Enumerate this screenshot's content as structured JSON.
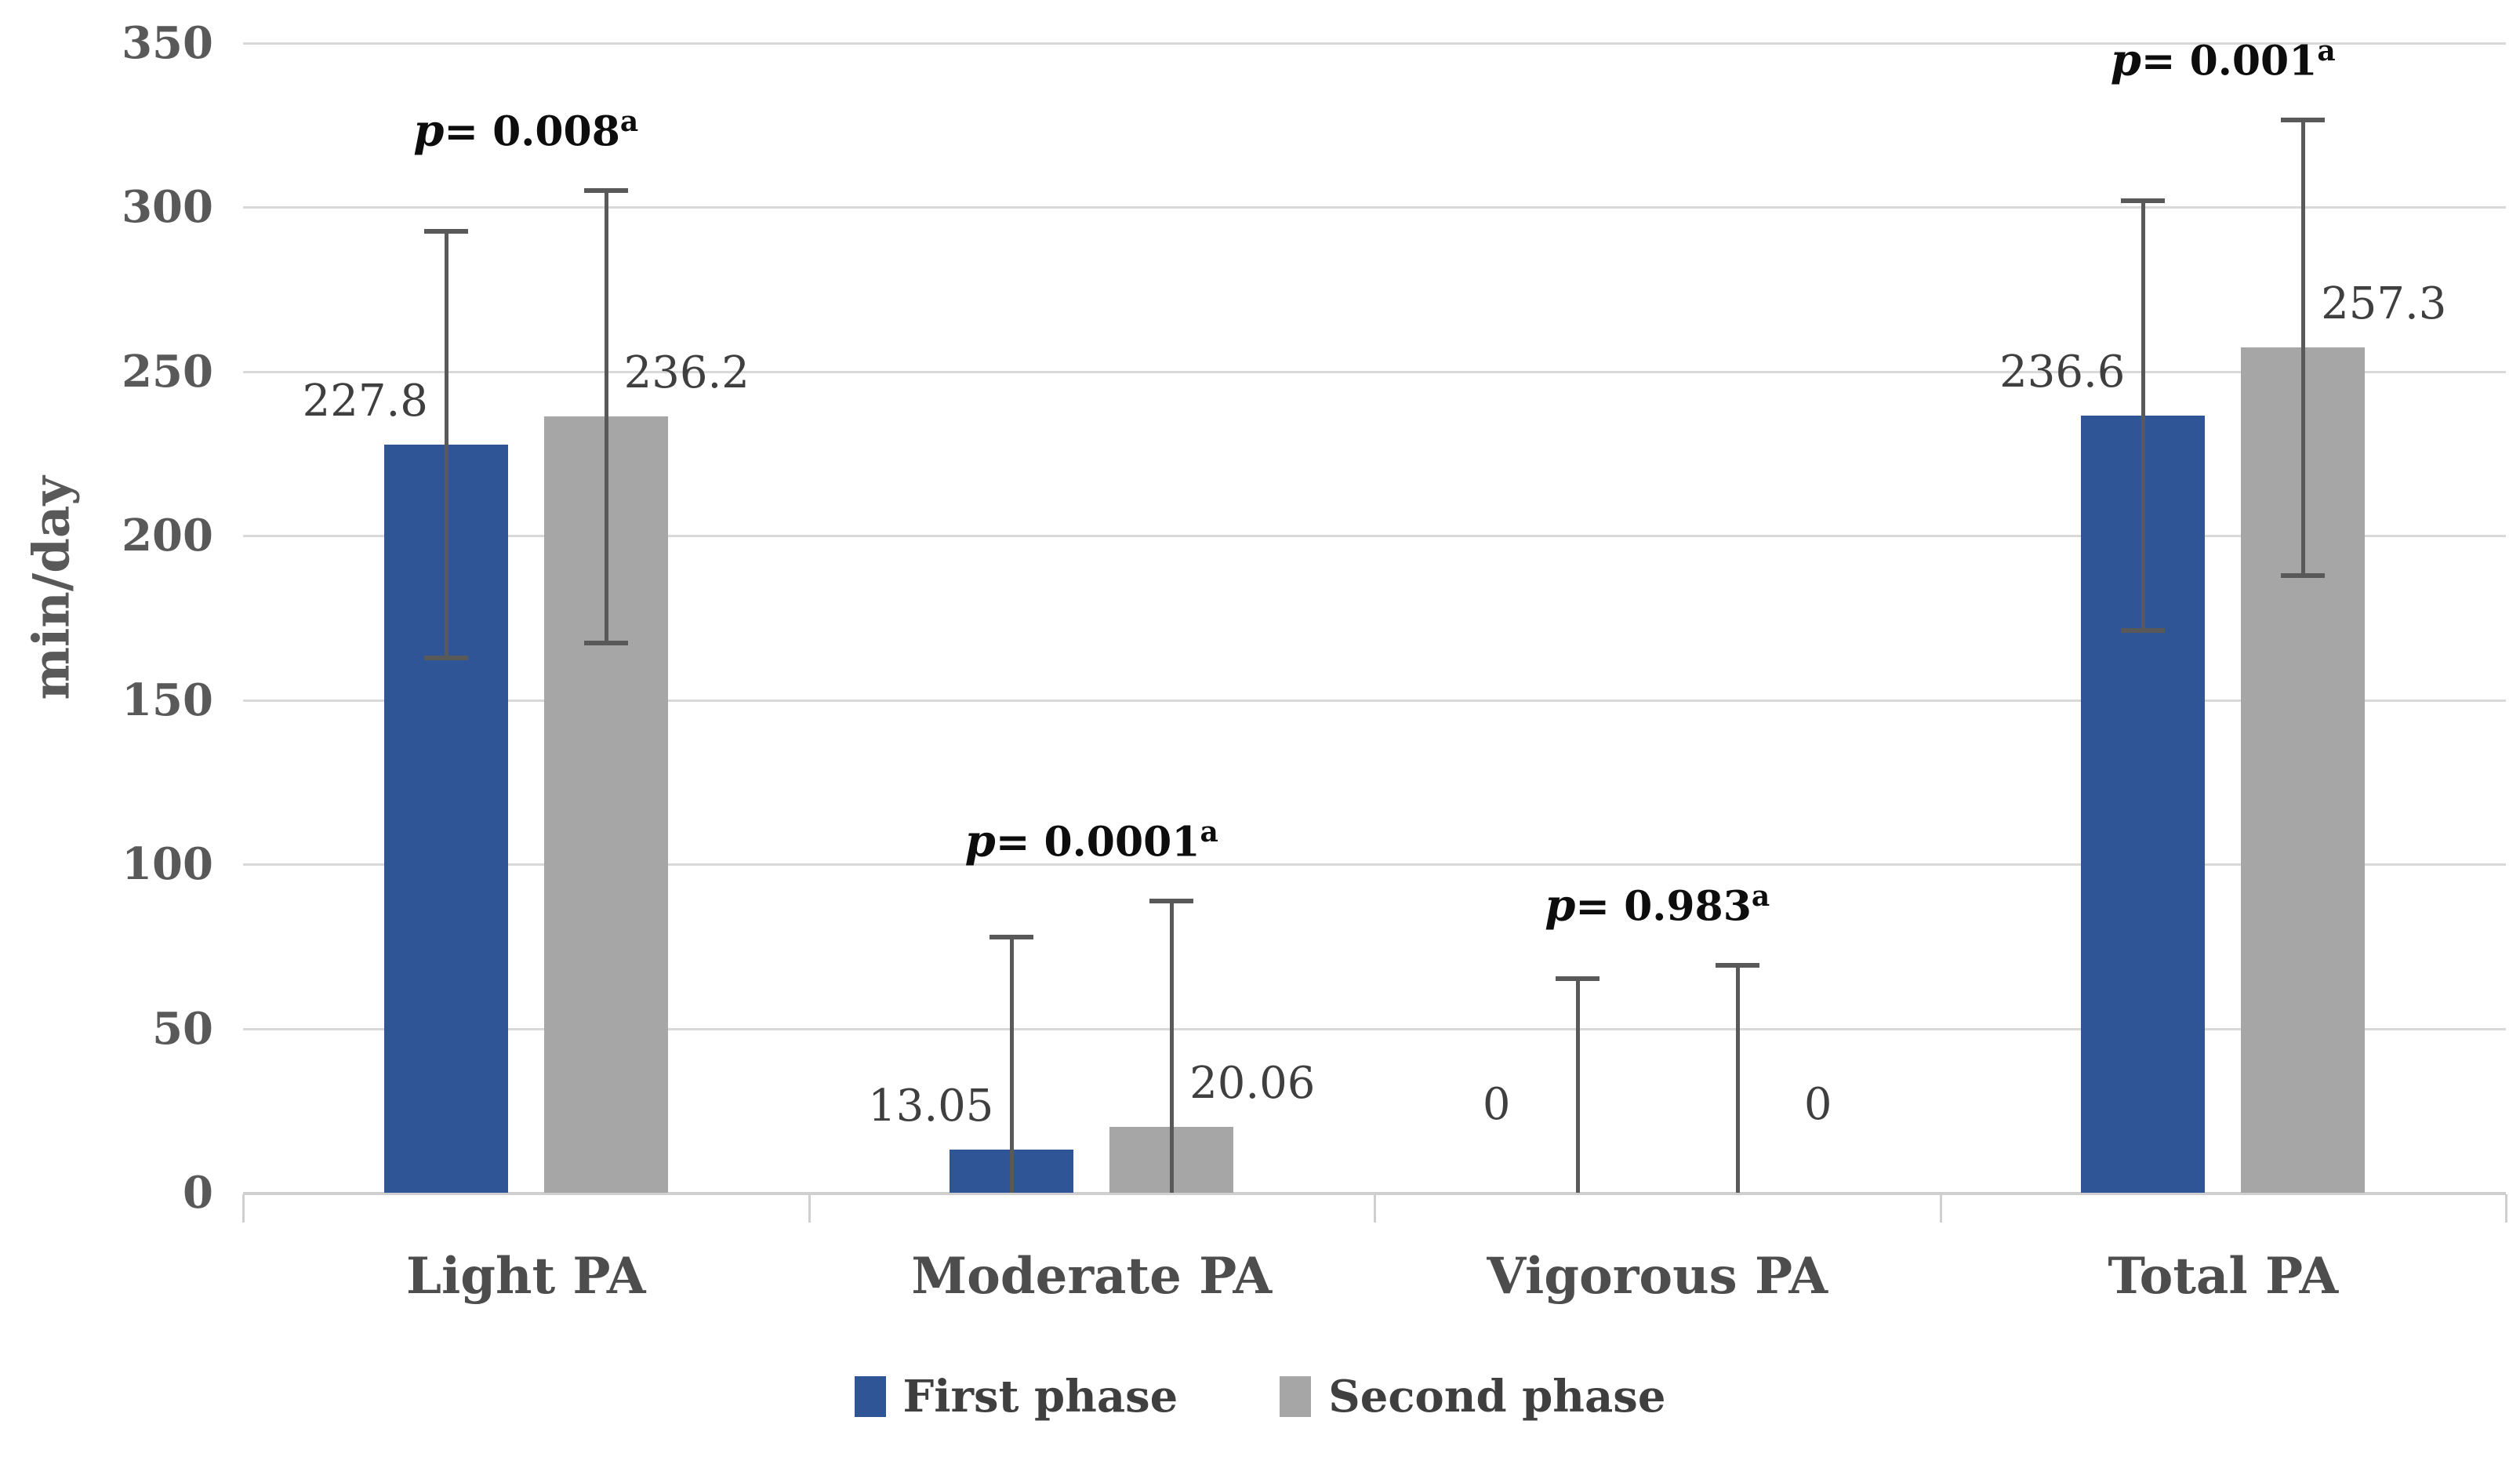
{
  "figure": {
    "ylabel": "min/day"
  },
  "chart_data": {
    "type": "bar",
    "title": "",
    "xlabel": "",
    "ylabel": "min/day",
    "ylim": [
      0,
      350
    ],
    "yticks": [
      0,
      50,
      100,
      150,
      200,
      250,
      300,
      350
    ],
    "grid": true,
    "legend_position": "bottom",
    "categories": [
      "Light PA",
      "Moderate PA",
      "Vigorous PA",
      "Total PA"
    ],
    "series": [
      {
        "name": "First phase",
        "color": "#2F5597",
        "values": [
          227.8,
          13.05,
          0,
          236.6
        ],
        "labels": [
          "227.8",
          "13.05",
          "0",
          "236.6"
        ],
        "error_high": [
          292.8,
          78.1,
          65.5,
          302.1
        ],
        "error_low": [
          162.8,
          0,
          0,
          171.1
        ],
        "lower_cap": [
          true,
          false,
          false,
          true
        ]
      },
      {
        "name": "Second phase",
        "color": "#A6A6A6",
        "values": [
          236.2,
          20.06,
          0,
          257.3
        ],
        "labels": [
          "236.2",
          "20.06",
          "0",
          "257.3"
        ],
        "error_high": [
          305.2,
          89.1,
          69.5,
          326.8
        ],
        "error_low": [
          167.2,
          0,
          0,
          187.8
        ],
        "lower_cap": [
          true,
          false,
          false,
          true
        ]
      }
    ],
    "annotations": [
      {
        "p": "p",
        "eq": "= 0.008",
        "sup": "a"
      },
      {
        "p": "p",
        "eq": "= 0.0001",
        "sup": "a"
      },
      {
        "p": "p",
        "eq": "= 0.983",
        "sup": "a"
      },
      {
        "p": "p",
        "eq": "= 0.001",
        "sup": "a"
      }
    ]
  }
}
